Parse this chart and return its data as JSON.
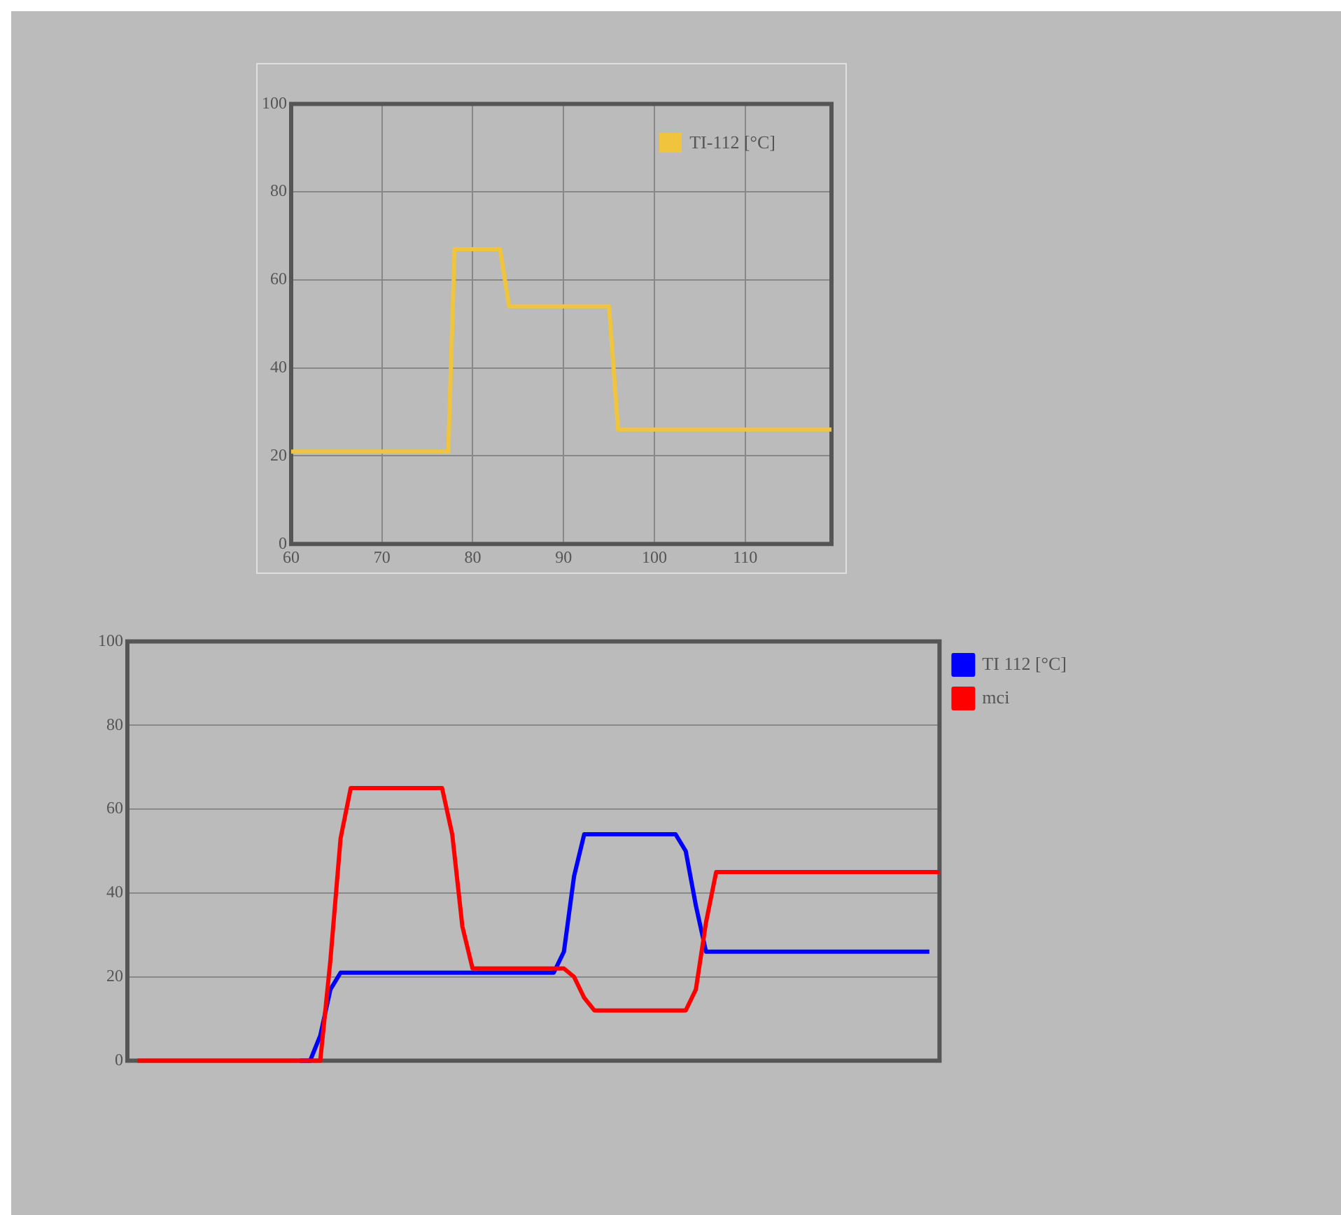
{
  "chart_data": [
    {
      "type": "line",
      "x": [
        60,
        77.3,
        78,
        83,
        84,
        95,
        96,
        119.5
      ],
      "series": [
        {
          "name": "TI-112 [°C]",
          "color": "#f0c43c",
          "values": [
            21,
            21,
            67,
            67,
            54,
            54,
            26,
            26
          ]
        }
      ],
      "xlim": [
        60,
        119.5
      ],
      "xticks": [
        60,
        70,
        80,
        90,
        100,
        110
      ],
      "ylim": [
        0,
        100
      ],
      "yticks": [
        0,
        20,
        40,
        60,
        80,
        100
      ],
      "grid": true,
      "legend": "top right",
      "marker": "none",
      "line_style": "solid"
    },
    {
      "type": "line",
      "categories": [
        null,
        null,
        null,
        null,
        null,
        null,
        null,
        null,
        null,
        null,
        null,
        null,
        null,
        null,
        null,
        null,
        null,
        null,
        null,
        null,
        null,
        null,
        null,
        null,
        null,
        null,
        null,
        null,
        null,
        null,
        null,
        null,
        null,
        null,
        null,
        null,
        null,
        null,
        null,
        null,
        null,
        null,
        null,
        null,
        null,
        null,
        null,
        null,
        null,
        null,
        null,
        null,
        null,
        null,
        null,
        null,
        null,
        null,
        null,
        null,
        null,
        null,
        null,
        null,
        null,
        null,
        null,
        null,
        null,
        null,
        null,
        null,
        null,
        null,
        null,
        null,
        null,
        null,
        null,
        null,
        null
      ],
      "series": [
        {
          "name": "TI 112 [°C]",
          "color": "#0000ff",
          "values": [
            null,
            null,
            null,
            null,
            null,
            null,
            null,
            null,
            null,
            null,
            null,
            null,
            null,
            null,
            null,
            null,
            null,
            0,
            0,
            6,
            17,
            21,
            21,
            21,
            21,
            21,
            21,
            21,
            21,
            21,
            21,
            21,
            21,
            21,
            21,
            21,
            21,
            21,
            21,
            21,
            21,
            21,
            21,
            26,
            44,
            54,
            54,
            54,
            54,
            54,
            54,
            54,
            54,
            54,
            54,
            50,
            37,
            26,
            26,
            26,
            26,
            26,
            26,
            26,
            26,
            26,
            26,
            26,
            26,
            26,
            26,
            26,
            26,
            26,
            26,
            26,
            26,
            26,
            26,
            26,
            null
          ]
        },
        {
          "name": "mci",
          "color": "#ff0000",
          "values": [
            null,
            0,
            0,
            0,
            0,
            0,
            0,
            0,
            0,
            0,
            0,
            0,
            0,
            0,
            0,
            0,
            0,
            0,
            0,
            0,
            24,
            53,
            65,
            65,
            65,
            65,
            65,
            65,
            65,
            65,
            65,
            65,
            54,
            32,
            22,
            22,
            22,
            22,
            22,
            22,
            22,
            22,
            22,
            22,
            20,
            15,
            12,
            12,
            12,
            12,
            12,
            12,
            12,
            12,
            12,
            12,
            17,
            33,
            45,
            45,
            45,
            45,
            45,
            45,
            45,
            45,
            45,
            45,
            45,
            45,
            45,
            45,
            45,
            45,
            45,
            45,
            45,
            45,
            45,
            45,
            45
          ]
        }
      ],
      "ylim": [
        0,
        100
      ],
      "yticks": [
        0,
        20,
        40,
        60,
        80,
        100
      ],
      "grid": "y",
      "legend": "right",
      "tick_labels": "y",
      "marker": "none",
      "line_style": "solid"
    }
  ]
}
